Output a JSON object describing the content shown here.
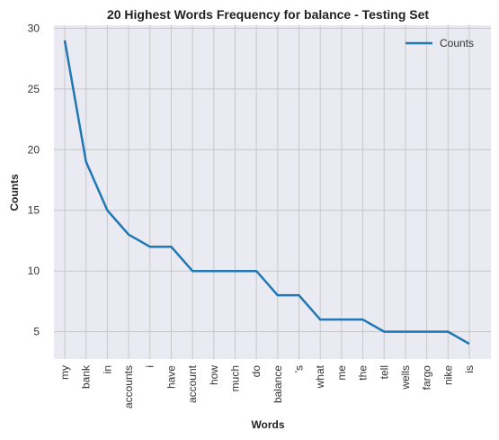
{
  "chart_data": {
    "type": "line",
    "title": "20 Highest Words Frequency for balance - Testing Set",
    "xlabel": "Words",
    "ylabel": "Counts",
    "categories": [
      "my",
      "bank",
      "in",
      "accounts",
      "i",
      "have",
      "account",
      "how",
      "much",
      "do",
      "balance",
      "'s",
      "what",
      "me",
      "the",
      "tell",
      "wells",
      "fargo",
      "nike",
      "is"
    ],
    "series": [
      {
        "name": "Counts",
        "values": [
          29,
          19,
          15,
          13,
          12,
          12,
          10,
          10,
          10,
          10,
          8,
          8,
          6,
          6,
          6,
          5,
          5,
          5,
          5,
          4
        ],
        "color": "#1f77b4"
      }
    ],
    "yticks": [
      5,
      10,
      15,
      20,
      25,
      30
    ],
    "ylim": [
      2.75,
      30.25
    ],
    "grid": true,
    "legend": "top-right",
    "background": "#eaeaf2",
    "gridColor": "#c8c8c8"
  }
}
